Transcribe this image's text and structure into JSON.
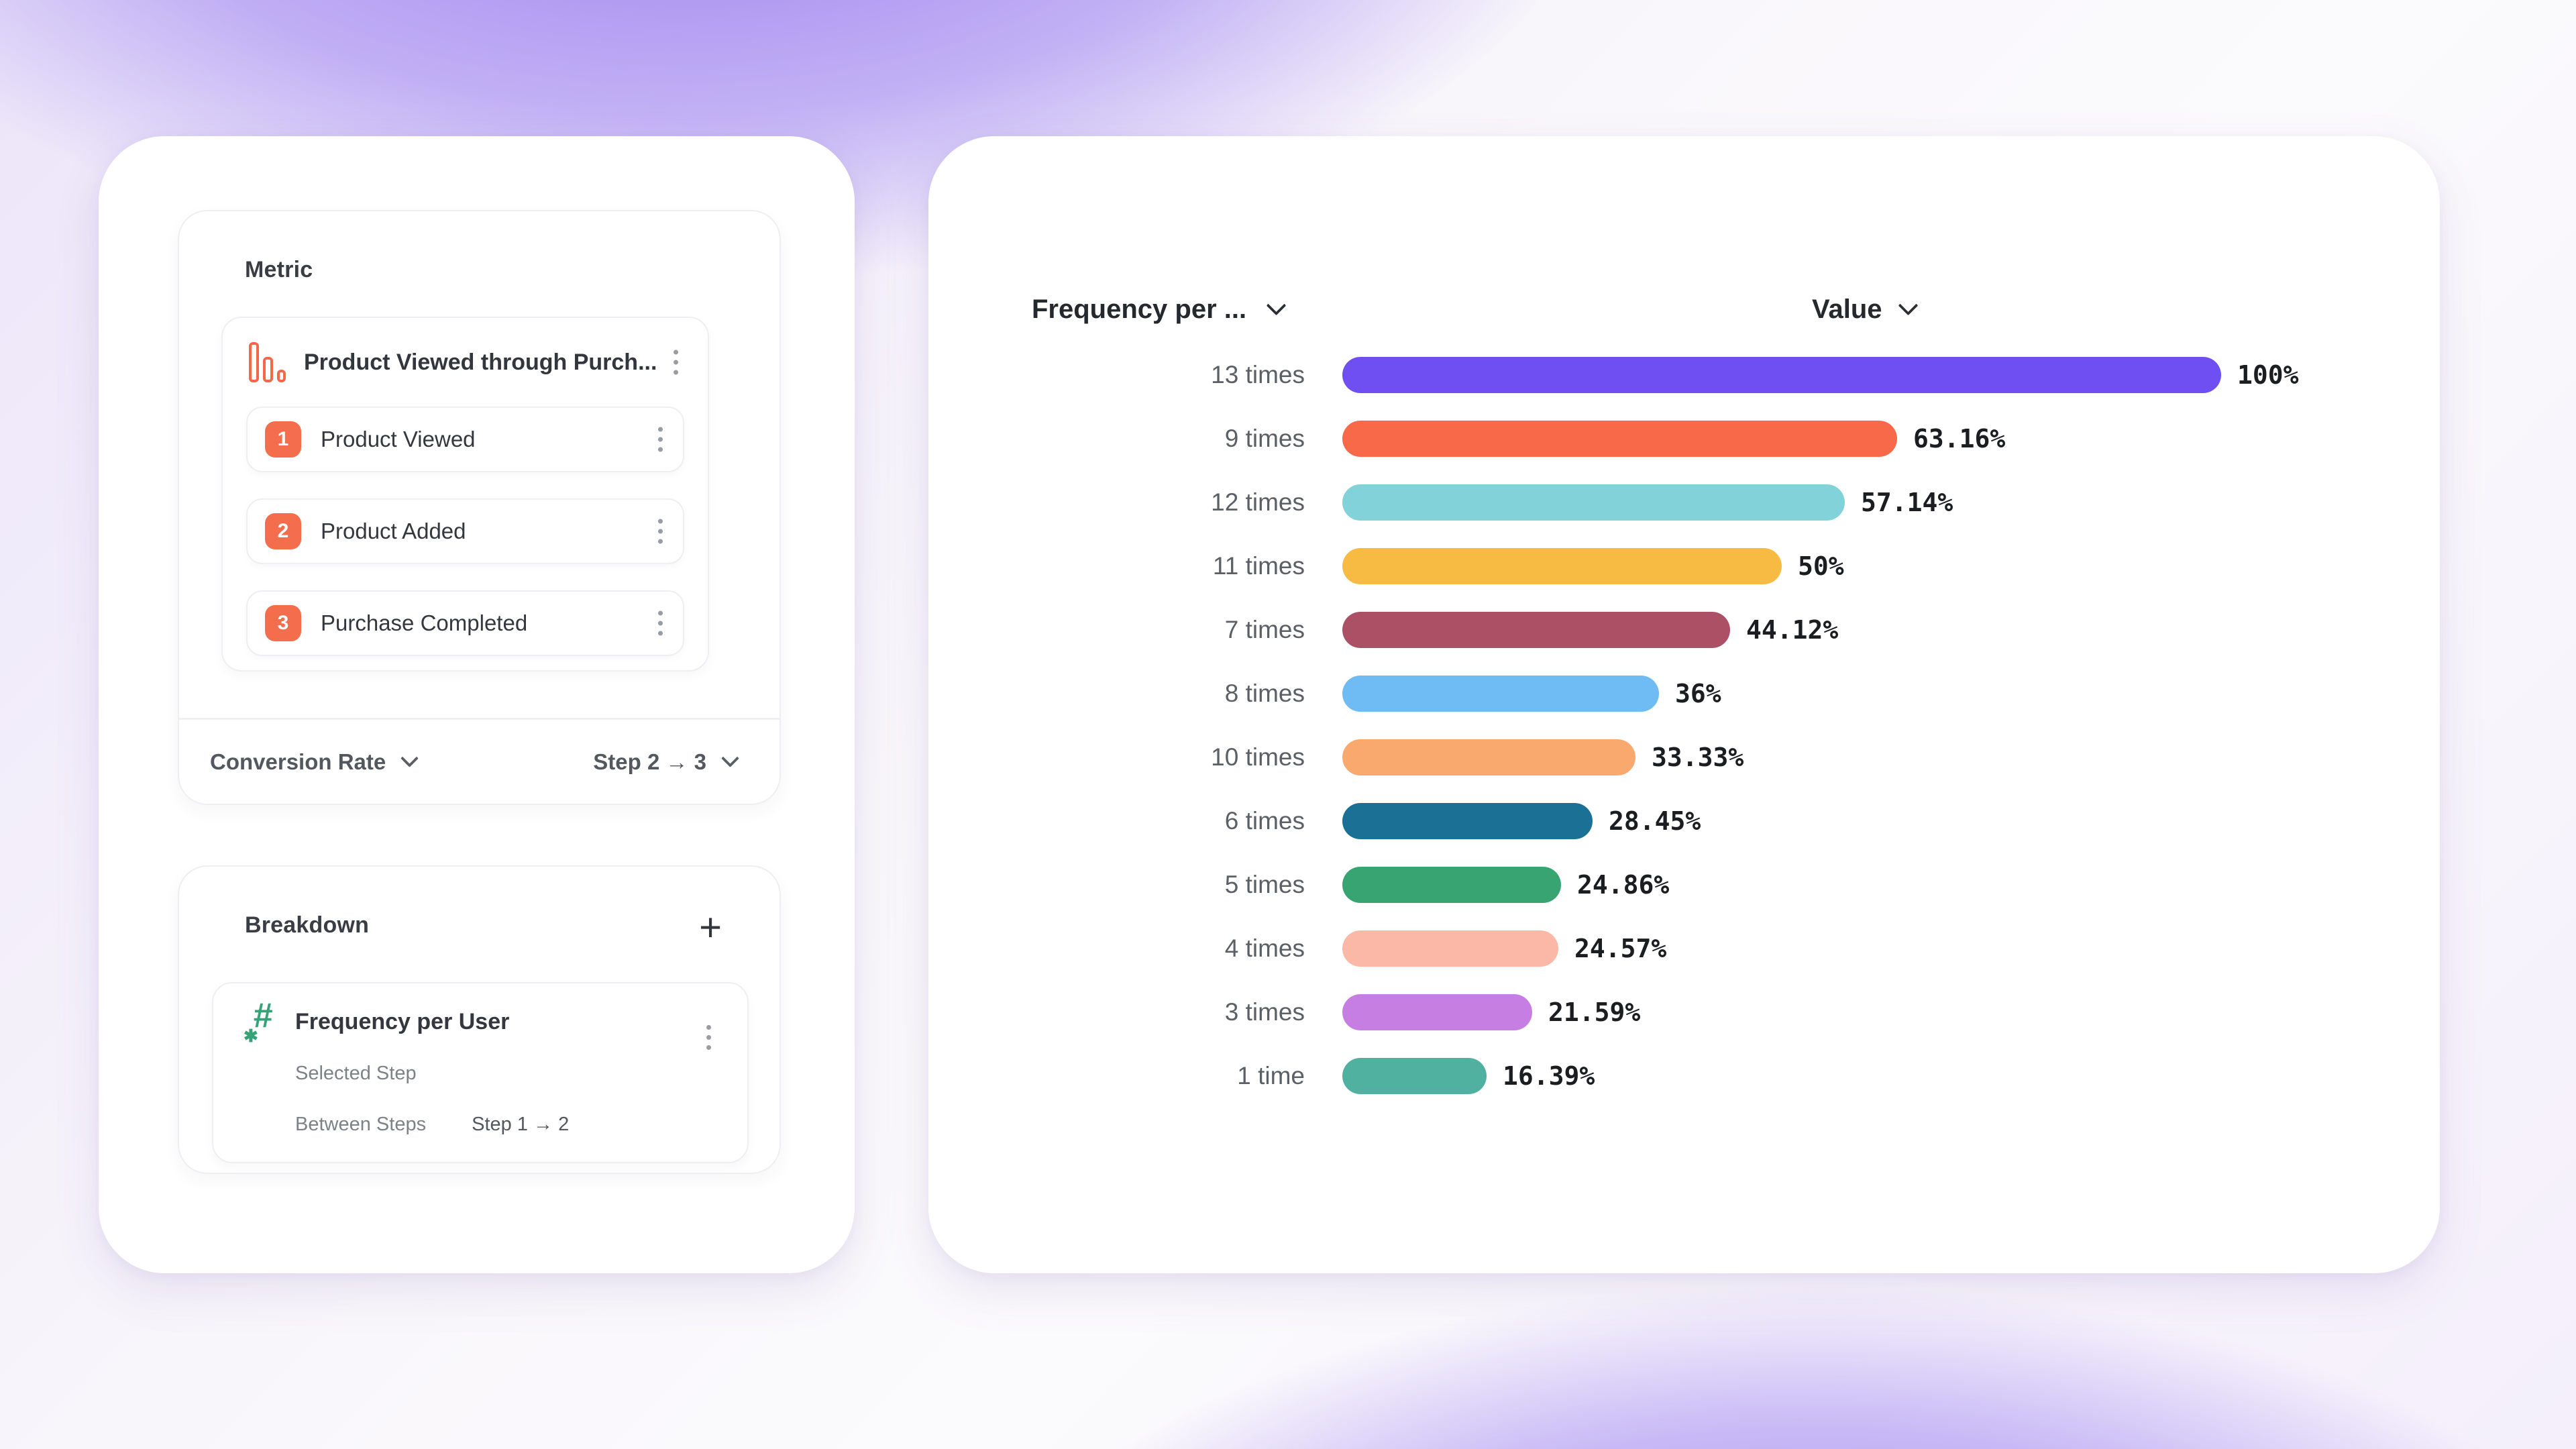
{
  "background": {
    "purple": "#9a7eed",
    "base": "#fbfafc"
  },
  "metric_panel": {
    "title": "Metric",
    "funnel": {
      "icon": "bar-chart-icon",
      "icon_color": "#F5674B",
      "title": "Product Viewed through Purch...",
      "step_badge_color": "#F46E4E",
      "steps": [
        {
          "number": "1",
          "label": "Product Viewed"
        },
        {
          "number": "2",
          "label": "Product Added"
        },
        {
          "number": "3",
          "label": "Purchase Completed"
        }
      ]
    },
    "footer": {
      "metric_type": "Conversion Rate",
      "step_range": "Step 2 → 3"
    }
  },
  "breakdown_panel": {
    "title": "Breakdown",
    "add_button": "+",
    "item": {
      "icon": "numeric-hash-icon",
      "icon_color": "#35A277",
      "name": "Frequency per User",
      "rows": [
        {
          "label": "Selected Step",
          "value": ""
        },
        {
          "label": "Between Steps",
          "value": "Step 1 → 2"
        }
      ]
    }
  },
  "chart_panel": {
    "left_header": "Frequency per ...",
    "right_header": "Value"
  },
  "chart_data": {
    "type": "bar",
    "orientation": "horizontal",
    "categories": [
      "13 times",
      "9 times",
      "12 times",
      "11 times",
      "7 times",
      "8 times",
      "10 times",
      "6 times",
      "5 times",
      "4 times",
      "3 times",
      "1 time"
    ],
    "values": [
      100,
      63.16,
      57.14,
      50,
      44.12,
      36,
      33.33,
      28.45,
      24.86,
      24.57,
      21.59,
      16.39
    ],
    "value_labels": [
      "100%",
      "63.16%",
      "57.14%",
      "50%",
      "44.12%",
      "36%",
      "33.33%",
      "28.45%",
      "24.86%",
      "24.57%",
      "21.59%",
      "16.39%"
    ],
    "bar_colors": [
      "#6F4EF2",
      "#F8694A",
      "#81D3D9",
      "#F7BB43",
      "#AC5066",
      "#6FBCF4",
      "#F9A96E",
      "#1A7095",
      "#38A471",
      "#FBB8A6",
      "#C67EE2",
      "#50B1A1"
    ],
    "xlim": [
      0,
      100
    ],
    "grid": false,
    "legend": false
  }
}
